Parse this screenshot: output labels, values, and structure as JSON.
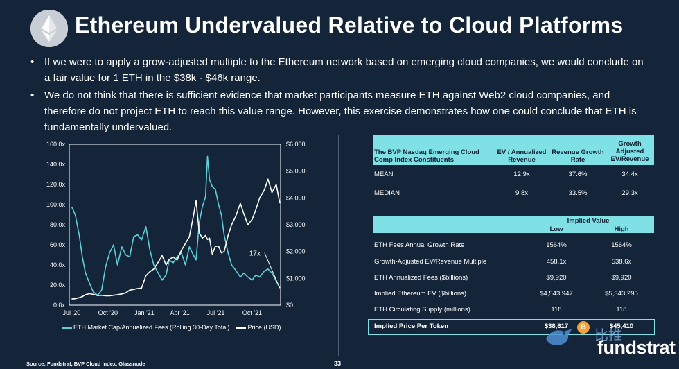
{
  "header": {
    "title": "Ethereum Undervalued Relative to Cloud Platforms",
    "logo_icon": "ethereum-diamond-icon"
  },
  "bullets": [
    "If we were to apply a grow-adjusted multiple to the Ethereum network based on emerging cloud companies, we would conclude on a fair value for 1 ETH in the $38k - $46k range.",
    "We do not think that there is sufficient evidence that market participants measure ETH against Web2 cloud companies, and therefore do not project ETH to reach this value range. However, this exercise demonstrates how one could conclude that ETH is fundamentally undervalued."
  ],
  "chart_data": {
    "type": "line",
    "x_ticks": [
      "Jul '20",
      "Oct '20",
      "Jan '21",
      "Apr '21",
      "Jul '21",
      "Oct '21"
    ],
    "y_left_ticks": [
      "160.0x",
      "140.0x",
      "120.0x",
      "100.0x",
      "80.0x",
      "60.0x",
      "40.0x",
      "20.0x",
      "0.0x"
    ],
    "y_right_ticks": [
      "$6,000",
      "$5,000",
      "$4,000",
      "$3,000",
      "$2,000",
      "$1,000",
      "$0"
    ],
    "ylim_left": [
      0,
      160
    ],
    "ylim_right": [
      0,
      6000
    ],
    "annotation": "17x",
    "series": [
      {
        "name": "ETH Market Cap/Annualized Fees (Rolling 30-Day Total)",
        "axis": "left",
        "color": "#5fd0d6",
        "x": [
          "2020-07-01",
          "2020-07-10",
          "2020-07-20",
          "2020-07-28",
          "2020-08-05",
          "2020-08-15",
          "2020-08-25",
          "2020-09-05",
          "2020-09-15",
          "2020-09-25",
          "2020-10-05",
          "2020-10-15",
          "2020-10-25",
          "2020-11-05",
          "2020-11-15",
          "2020-11-25",
          "2020-12-05",
          "2020-12-15",
          "2020-12-25",
          "2021-01-05",
          "2021-01-15",
          "2021-01-25",
          "2021-02-05",
          "2021-02-15",
          "2021-02-25",
          "2021-03-05",
          "2021-03-15",
          "2021-03-25",
          "2021-04-05",
          "2021-04-15",
          "2021-04-25",
          "2021-05-05",
          "2021-05-12",
          "2021-05-20",
          "2021-05-28",
          "2021-06-05",
          "2021-06-10",
          "2021-06-15",
          "2021-06-22",
          "2021-06-30",
          "2021-07-08",
          "2021-07-15",
          "2021-07-22",
          "2021-08-01",
          "2021-08-10",
          "2021-08-20",
          "2021-09-01",
          "2021-09-10",
          "2021-09-20",
          "2021-10-01",
          "2021-10-10",
          "2021-10-20",
          "2021-11-01",
          "2021-11-10",
          "2021-11-20",
          "2021-12-01",
          "2021-12-10"
        ],
        "values": [
          98,
          90,
          70,
          48,
          32,
          22,
          13,
          10,
          15,
          38,
          52,
          60,
          40,
          58,
          50,
          48,
          68,
          70,
          65,
          78,
          55,
          40,
          32,
          25,
          30,
          45,
          42,
          48,
          52,
          40,
          58,
          50,
          45,
          82,
          98,
          108,
          148,
          125,
          118,
          115,
          100,
          90,
          70,
          52,
          40,
          35,
          28,
          32,
          28,
          25,
          30,
          28,
          34,
          36,
          32,
          24,
          17
        ]
      },
      {
        "name": "Price (USD)",
        "axis": "right",
        "color": "#ffffff",
        "x": [
          "2020-07-01",
          "2020-07-10",
          "2020-07-20",
          "2020-07-28",
          "2020-08-05",
          "2020-08-15",
          "2020-08-25",
          "2020-09-05",
          "2020-09-15",
          "2020-09-25",
          "2020-10-05",
          "2020-10-15",
          "2020-10-25",
          "2020-11-05",
          "2020-11-15",
          "2020-11-25",
          "2020-12-05",
          "2020-12-15",
          "2020-12-25",
          "2021-01-05",
          "2021-01-15",
          "2021-01-25",
          "2021-02-05",
          "2021-02-15",
          "2021-02-25",
          "2021-03-05",
          "2021-03-15",
          "2021-03-25",
          "2021-04-05",
          "2021-04-15",
          "2021-04-25",
          "2021-05-05",
          "2021-05-12",
          "2021-05-20",
          "2021-05-28",
          "2021-06-05",
          "2021-06-10",
          "2021-06-15",
          "2021-06-22",
          "2021-06-30",
          "2021-07-08",
          "2021-07-15",
          "2021-07-22",
          "2021-08-01",
          "2021-08-10",
          "2021-08-20",
          "2021-09-01",
          "2021-09-10",
          "2021-09-20",
          "2021-10-01",
          "2021-10-10",
          "2021-10-20",
          "2021-11-01",
          "2021-11-10",
          "2021-11-20",
          "2021-12-01",
          "2021-12-10"
        ],
        "values": [
          230,
          240,
          280,
          320,
          390,
          430,
          400,
          360,
          370,
          350,
          350,
          370,
          390,
          420,
          460,
          560,
          590,
          620,
          640,
          1100,
          1250,
          1350,
          1600,
          1850,
          1500,
          1700,
          1800,
          1680,
          2050,
          2300,
          2550,
          3300,
          3900,
          2700,
          2500,
          2600,
          2450,
          2500,
          1900,
          2200,
          2200,
          1950,
          2000,
          2600,
          3000,
          3300,
          3800,
          3400,
          3000,
          3200,
          3550,
          4000,
          4300,
          4700,
          4200,
          4500,
          3800
        ]
      }
    ]
  },
  "table1": {
    "headers": [
      "The BVP Nasdaq Emerging Cloud Comp Index Constituents",
      "EV / Annualized Revenue",
      "Revenue Growth Rate",
      "Growth Adjusted EV/Revenue"
    ],
    "rows": [
      [
        "MEAN",
        "12.9x",
        "37.6%",
        "34.4x"
      ],
      [
        "MEDIAN",
        "9.8x",
        "33.5%",
        "29.3x"
      ]
    ]
  },
  "table2": {
    "group_header": "Implied Value",
    "col_low": "Low",
    "col_high": "High",
    "rows": [
      [
        "ETH Fees Annual Growth Rate",
        "1564%",
        "1564%"
      ],
      [
        "Growth-Adjusted EV/Revenue Multiple",
        "458.1x",
        "538.6x"
      ],
      [
        "ETH Annualized Fees ($billions)",
        "$9,920",
        "$9,920"
      ],
      [
        "Implied Ethereum EV ($billions)",
        "$4,543,947",
        "$5,343,295"
      ],
      [
        "ETH Circulating Supply (millions)",
        "118",
        "118"
      ],
      [
        "Implied Price Per Token",
        "$38,617",
        "$45,410"
      ]
    ]
  },
  "footer": {
    "source": "Source: Fundstrat, BVP Cloud Index, Glassnode",
    "page": "33",
    "brand": "fundstrat",
    "watermark": "比推",
    "coin_glyph": "B"
  },
  "colors": {
    "background": "#14253a",
    "accent": "#7fe1e6",
    "fees_line": "#5fd0d6",
    "price_line": "#ffffff"
  }
}
